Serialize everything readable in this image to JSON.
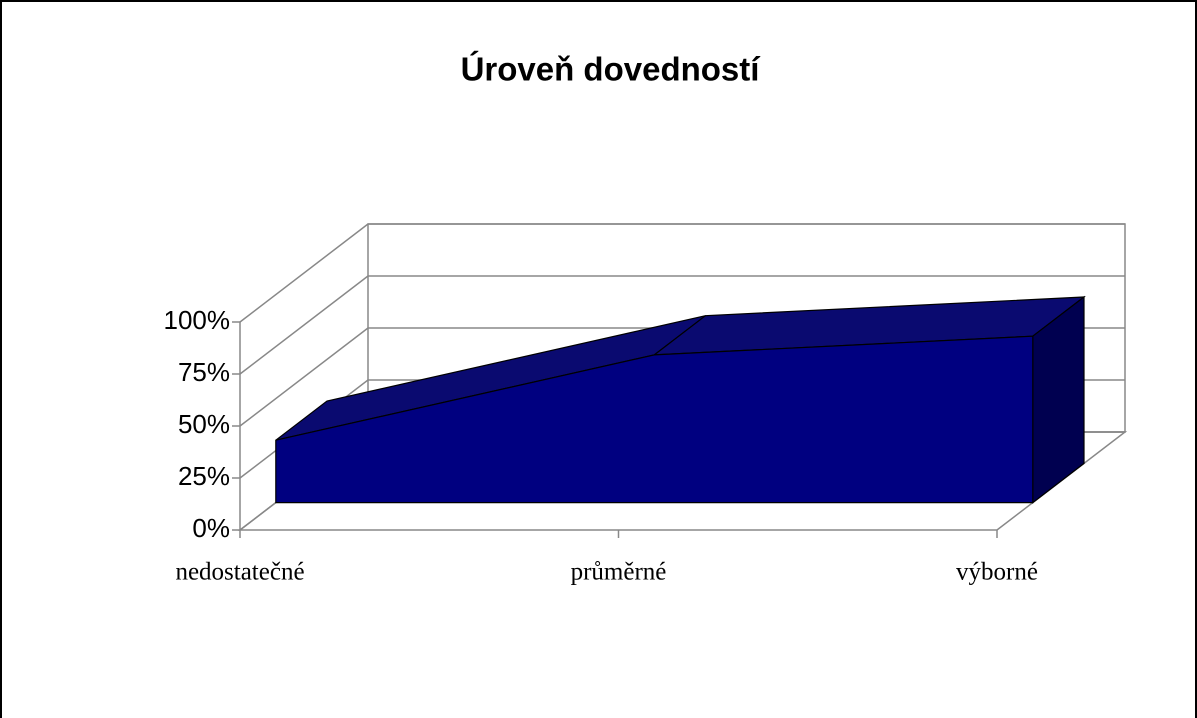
{
  "chart_data": {
    "type": "area3d",
    "title": "Úroveň dovedností",
    "categories": [
      "nedostatečné",
      "průměrné",
      "výborné"
    ],
    "values": [
      30,
      71,
      80
    ],
    "color": "#000080",
    "ylim": [
      0,
      100
    ],
    "yticks": [
      {
        "value": 0,
        "label": "0%"
      },
      {
        "value": 25,
        "label": "25%"
      },
      {
        "value": 50,
        "label": "50%"
      },
      {
        "value": 75,
        "label": "75%"
      },
      {
        "value": 100,
        "label": "100%"
      }
    ],
    "grid": true
  }
}
